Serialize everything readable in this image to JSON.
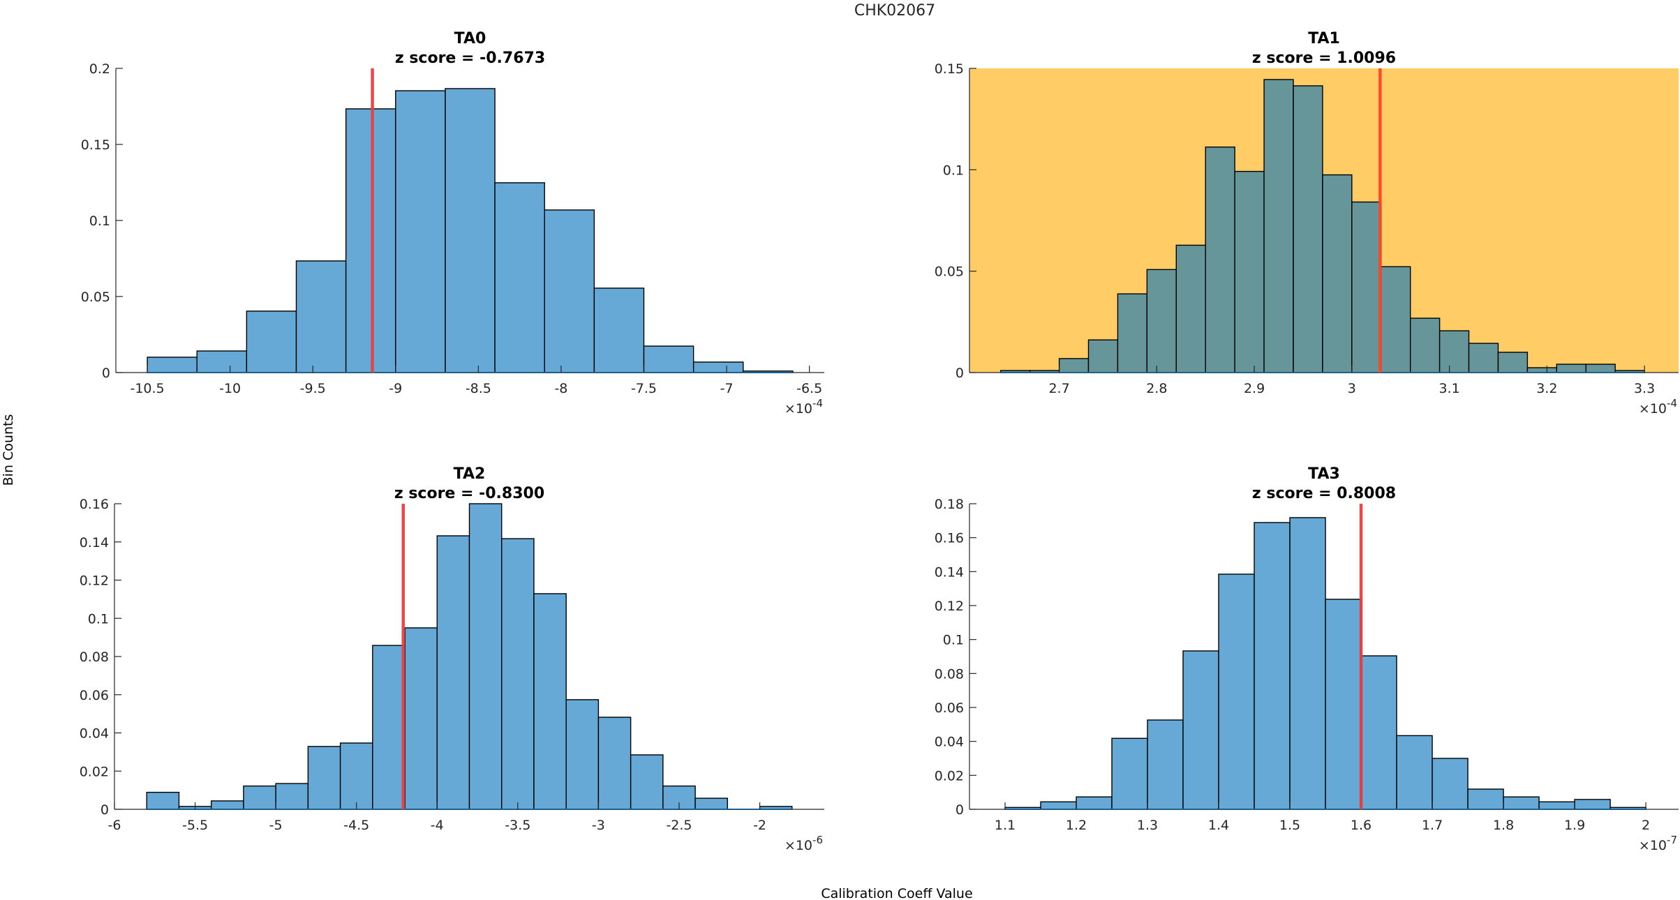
{
  "figure": {
    "suptitle": "CHK02067",
    "ylabel": "Bin Counts",
    "xlabel": "Calibration Coeff Value"
  },
  "colors": {
    "bar_default": "#67A9D6",
    "bar_highlight": "#669699",
    "highlight_background": "#FFCC66",
    "zscore_line": "#E8403F",
    "zscore_line_highlight": "#FF4525"
  },
  "chart_data": [
    {
      "type": "bar",
      "subtype": "histogram",
      "title": "TA0",
      "subtitle": "z score = -0.7673",
      "highlighted": false,
      "xlabel": "",
      "ylabel": "",
      "x_exponent_label": "×10",
      "x_exponent": "-4",
      "xlim": [
        -10.69,
        -6.41
      ],
      "ylim": [
        0,
        0.2
      ],
      "xticks": [
        -10.5,
        -10,
        -9.5,
        -9,
        -8.5,
        -8,
        -7.5,
        -7,
        -6.5
      ],
      "xtick_labels": [
        "-10.5",
        "-10",
        "-9.5",
        "-9",
        "-8.5",
        "-8",
        "-7.5",
        "-7",
        "-6.5"
      ],
      "yticks": [
        0,
        0.05,
        0.1,
        0.15,
        0.2
      ],
      "ytick_labels": [
        "0",
        "0.05",
        "0.1",
        "0.15",
        "0.2"
      ],
      "bin_start": -10.5,
      "bin_width": 0.3,
      "values": [
        0.0101,
        0.0142,
        0.0404,
        0.0734,
        0.1734,
        0.1853,
        0.1867,
        0.1248,
        0.1069,
        0.0555,
        0.0174,
        0.0069,
        0.001
      ],
      "zscore_line_x": -9.14
    },
    {
      "type": "bar",
      "subtype": "histogram",
      "title": "TA1",
      "subtitle": "z score = 1.0096",
      "highlighted": true,
      "xlabel": "",
      "ylabel": "",
      "x_exponent_label": "×10",
      "x_exponent": "-4",
      "xlim": [
        2.608,
        3.335
      ],
      "ylim": [
        0,
        0.15
      ],
      "xticks": [
        2.7,
        2.8,
        2.9,
        3.0,
        3.1,
        3.2,
        3.3
      ],
      "xtick_labels": [
        "2.7",
        "2.8",
        "2.9",
        "3",
        "3.1",
        "3.2",
        "3.3"
      ],
      "yticks": [
        0,
        0.05,
        0.1,
        0.15
      ],
      "ytick_labels": [
        "0",
        "0.05",
        "0.1",
        "0.15"
      ],
      "bin_start": 2.64,
      "bin_width": 0.03,
      "values": [
        0.001,
        0.001,
        0.0069,
        0.0161,
        0.0388,
        0.0508,
        0.0628,
        0.1112,
        0.0992,
        0.1445,
        0.1414,
        0.0975,
        0.0841,
        0.0522,
        0.0268,
        0.0206,
        0.0144,
        0.01,
        0.0024,
        0.0041,
        0.0041,
        0.001
      ],
      "zscore_line_x": 3.029
    },
    {
      "type": "bar",
      "subtype": "histogram",
      "title": "TA2",
      "subtitle": "z score = -0.8300",
      "highlighted": false,
      "xlabel": "",
      "ylabel": "",
      "x_exponent_label": "×10",
      "x_exponent": "-6",
      "xlim": [
        -6.0,
        -1.6
      ],
      "ylim": [
        0,
        0.16
      ],
      "xticks": [
        -6,
        -5.5,
        -5,
        -4.5,
        -4,
        -3.5,
        -3,
        -2.5,
        -2
      ],
      "xtick_labels": [
        "-6",
        "-5.5",
        "-5",
        "-4.5",
        "-4",
        "-3.5",
        "-3",
        "-2.5",
        "-2"
      ],
      "yticks": [
        0,
        0.02,
        0.04,
        0.06,
        0.08,
        0.1,
        0.12,
        0.14,
        0.16
      ],
      "ytick_labels": [
        "0",
        "0.02",
        "0.04",
        "0.06",
        "0.08",
        "0.1",
        "0.12",
        "0.14",
        "0.16"
      ],
      "bin_start": -5.8,
      "bin_width": 0.2,
      "values": [
        0.0089,
        0.0015,
        0.0044,
        0.0122,
        0.0135,
        0.0329,
        0.0347,
        0.0858,
        0.095,
        0.1432,
        0.16,
        0.1417,
        0.1129,
        0.0574,
        0.0482,
        0.0285,
        0.0122,
        0.0058,
        0,
        0.0015
      ],
      "zscore_line_x": -4.21
    },
    {
      "type": "bar",
      "subtype": "histogram",
      "title": "TA3",
      "subtitle": "z score = 0.8008",
      "highlighted": false,
      "xlabel": "",
      "ylabel": "",
      "x_exponent_label": "×10",
      "x_exponent": "-7",
      "xlim": [
        1.05,
        2.046
      ],
      "ylim": [
        0,
        0.18
      ],
      "xticks": [
        1.1,
        1.2,
        1.3,
        1.4,
        1.5,
        1.6,
        1.7,
        1.8,
        1.9,
        2.0
      ],
      "xtick_labels": [
        "1.1",
        "1.2",
        "1.3",
        "1.4",
        "1.5",
        "1.6",
        "1.7",
        "1.8",
        "1.9",
        "2"
      ],
      "yticks": [
        0,
        0.02,
        0.04,
        0.06,
        0.08,
        0.1,
        0.12,
        0.14,
        0.16,
        0.18
      ],
      "ytick_labels": [
        "0",
        "0.02",
        "0.04",
        "0.06",
        "0.08",
        "0.1",
        "0.12",
        "0.14",
        "0.16",
        "0.18"
      ],
      "bin_start": 1.1,
      "bin_width": 0.05,
      "values": [
        0.0011,
        0.0044,
        0.0073,
        0.0418,
        0.0526,
        0.0933,
        0.1385,
        0.1689,
        0.1718,
        0.1237,
        0.0904,
        0.0434,
        0.03,
        0.0119,
        0.0073,
        0.0044,
        0.0058,
        0.0011
      ],
      "zscore_line_x": 1.6
    }
  ]
}
